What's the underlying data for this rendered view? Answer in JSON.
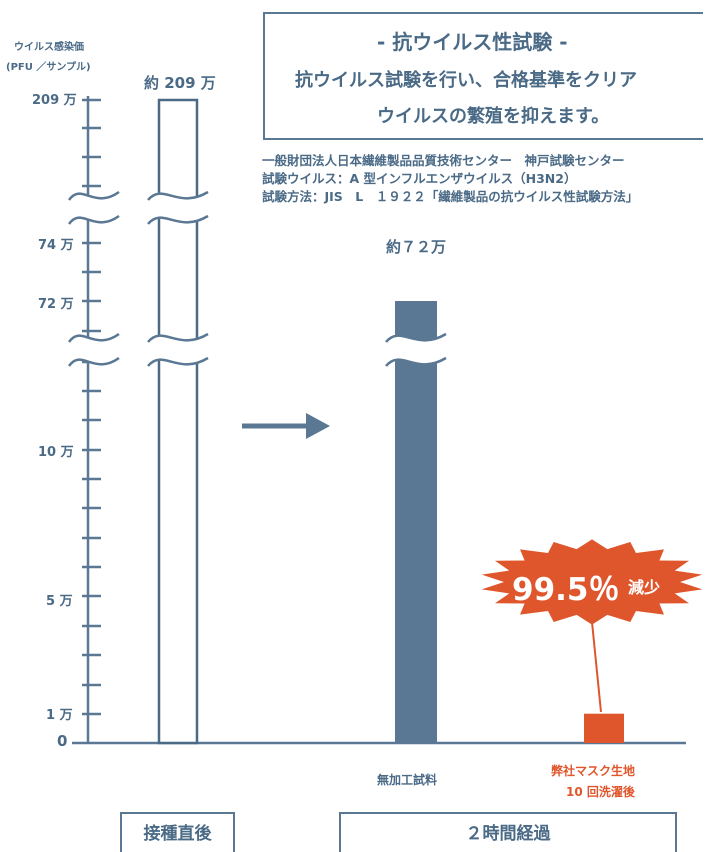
{
  "header": {
    "title": "- 抗ウイルス性試験 -",
    "line1": "抗ウイルス試験を行い、合格基準をクリア",
    "line2": "ウイルスの繁殖を抑えます。"
  },
  "notes": [
    "一般財団法人日本繊維製品品質技術センター　神戸試験センター",
    "試験ウイルス：A 型インフルエンザウイルス（H3N2）",
    "試験方法：JIS　L　１９２２「繊維製品の抗ウイルス性試験方法」"
  ],
  "burst": {
    "value": "99.5％",
    "suffix": "減少"
  },
  "groups": [
    "接種直後",
    "２時間経過"
  ],
  "colors": {
    "bar": "#5a7894",
    "accent": "#e0562c",
    "outline": "#4a6a86"
  },
  "chart_data": {
    "type": "bar",
    "ylabel": "ウイルス感染価",
    "ylabel_unit": "(PFU ／サンプル)",
    "y_scale": "broken",
    "yticks": [
      "209 万",
      "74 万",
      "72 万",
      "10 万",
      "5 万",
      "1 万",
      "0"
    ],
    "categories": [
      "接種直後",
      "無加工試料",
      "弊社マスク生地\n10 回洗濯後"
    ],
    "category_labels": [
      "",
      "無加工試料",
      "弊社マスク生地"
    ],
    "category_sublabels": [
      "",
      "",
      "10 回洗濯後"
    ],
    "values": [
      2090000,
      720000,
      10000
    ],
    "data_labels": [
      "約 209 万",
      "約７２万",
      ""
    ],
    "bar_styles": [
      "outline",
      "filled",
      "accent"
    ]
  }
}
